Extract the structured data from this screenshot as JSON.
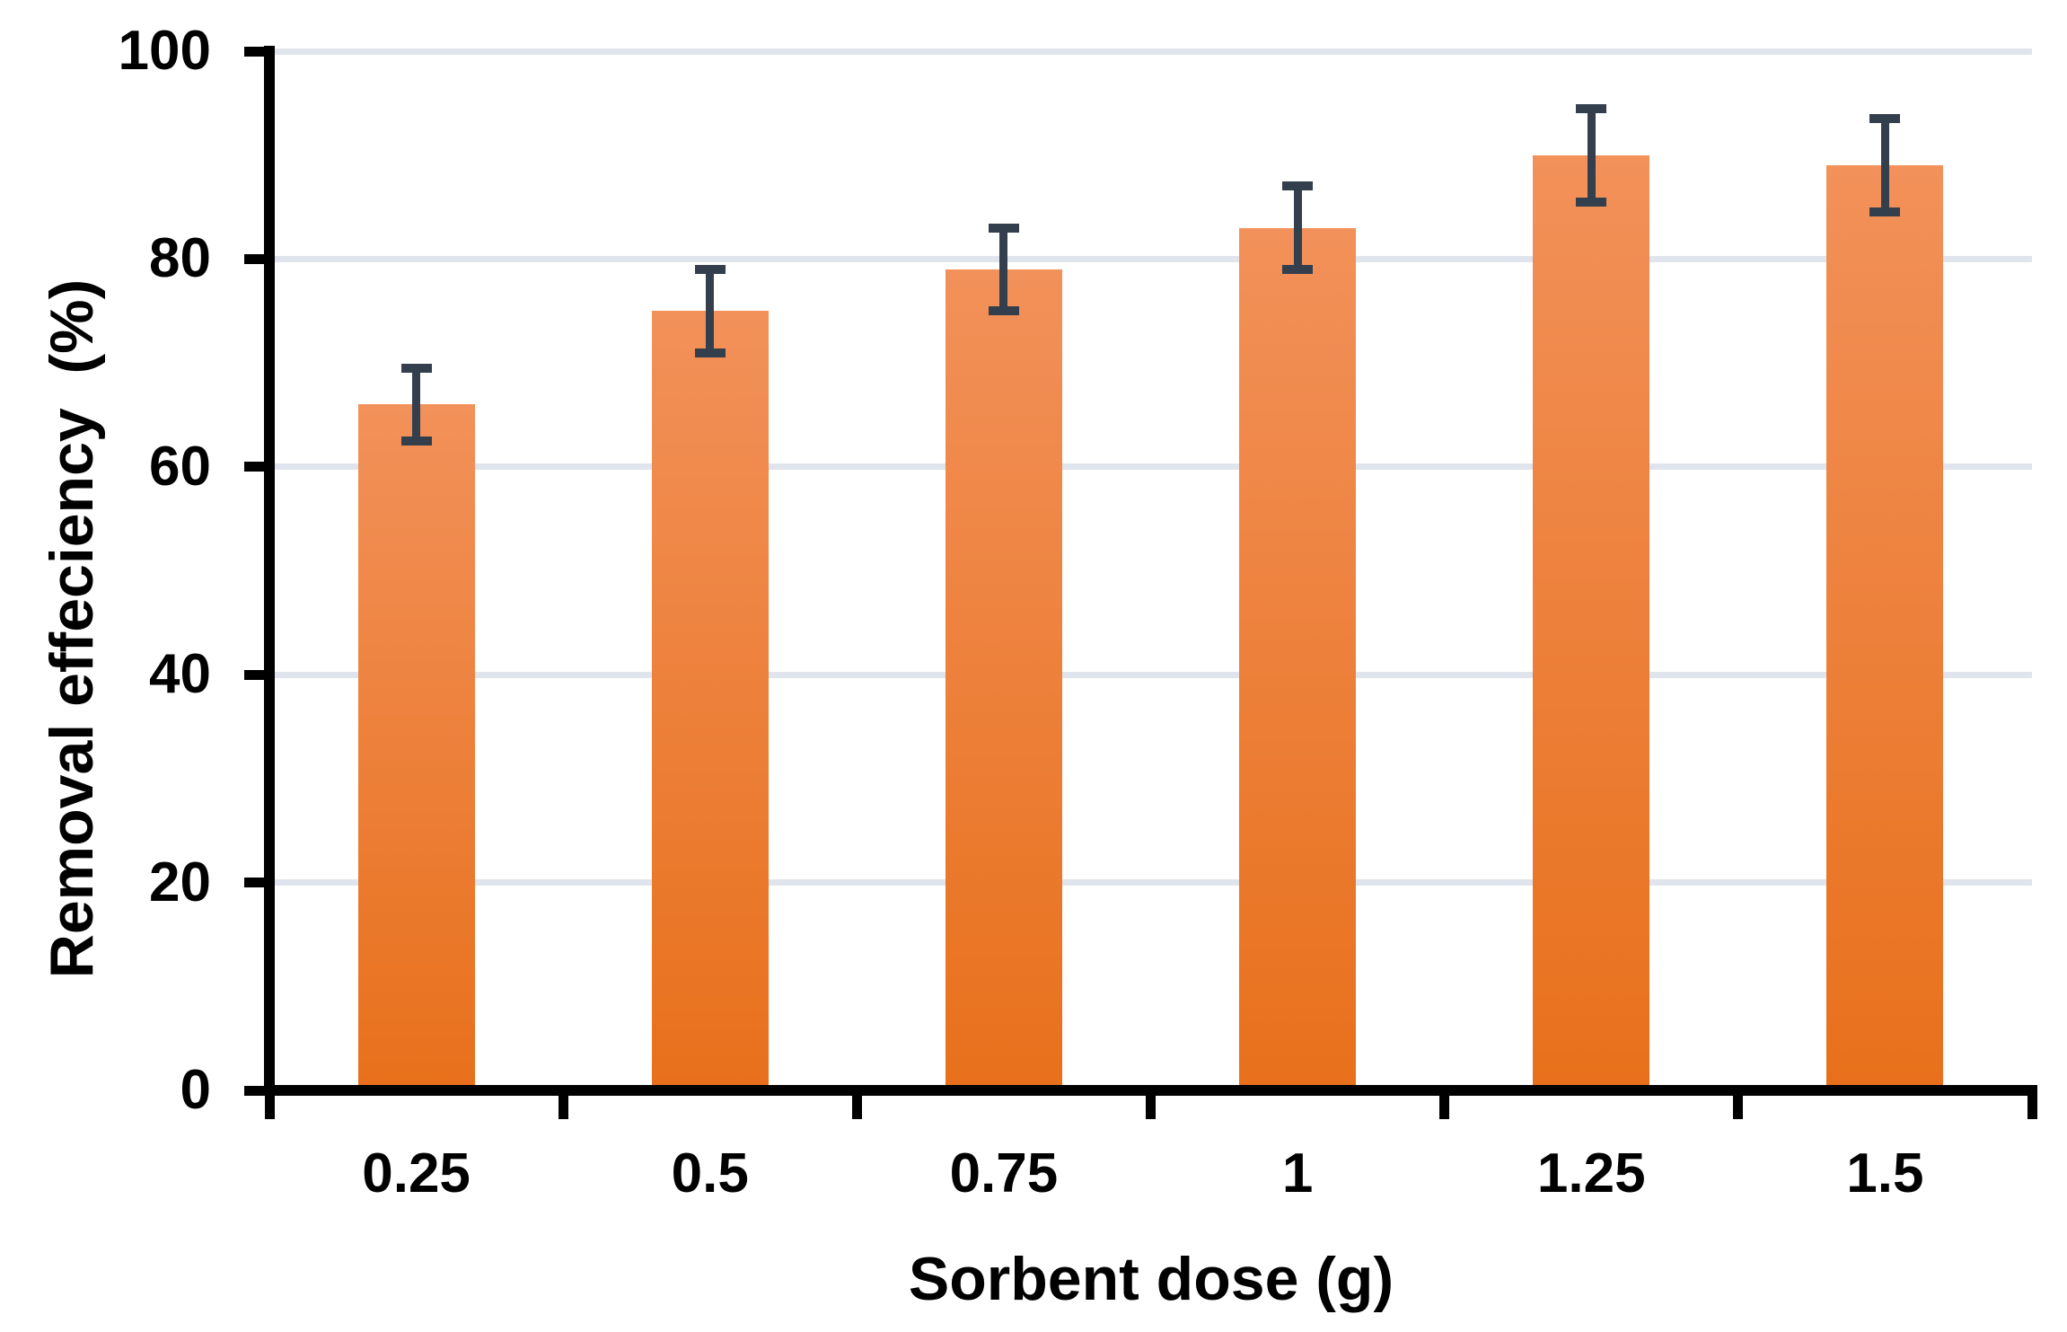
{
  "chart_data": {
    "type": "bar",
    "title": "",
    "xlabel": "Sorbent dose (g)",
    "ylabel": "Removal effeciency  (%)",
    "categories": [
      "0.25",
      "0.5",
      "0.75",
      "1",
      "1.25",
      "1.5"
    ],
    "values": [
      66,
      75,
      79,
      83,
      90,
      89
    ],
    "error_bars": [
      3.5,
      4,
      4,
      4,
      4.5,
      4.5
    ],
    "ylim": [
      0,
      100
    ],
    "yticks": [
      0,
      20,
      40,
      60,
      80,
      100
    ],
    "grid": "horizontal",
    "legend_position": "none",
    "colors": {
      "bar_gradient_top": "#F2915A",
      "bar_gradient_bottom": "#E8701B",
      "error_bar": "#343F4E",
      "gridline": "#E0E4EC",
      "axis": "#000000",
      "text": "#000000",
      "background": "#FFFFFF"
    }
  }
}
